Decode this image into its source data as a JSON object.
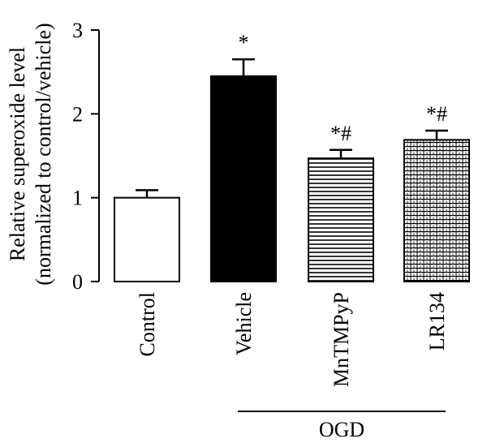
{
  "chart_data": {
    "type": "bar",
    "ylabel_line1": "Relative superoxide level",
    "ylabel_line2": "(normalized to control/vehicle)",
    "ylim": [
      0,
      3
    ],
    "yticks": [
      "0",
      "1",
      "2",
      "3"
    ],
    "grid": false,
    "categories": [
      "Control",
      "Vehicle",
      "MnTMPyP",
      "LR134"
    ],
    "values": [
      1.0,
      2.45,
      1.47,
      1.69
    ],
    "errors": [
      0.09,
      0.2,
      0.1,
      0.11
    ],
    "fills": [
      "white",
      "black",
      "horizontal-lines",
      "brick-hatch"
    ],
    "annotations": [
      "",
      "*",
      "*#",
      "*#"
    ],
    "group_label": "OGD",
    "group_members": [
      "Vehicle",
      "MnTMPyP",
      "LR134"
    ]
  }
}
